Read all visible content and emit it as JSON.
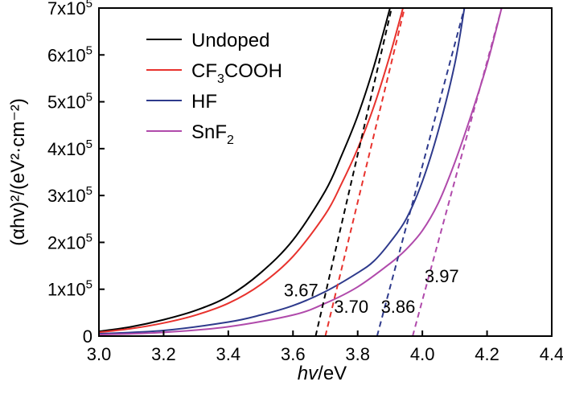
{
  "chart_data": {
    "type": "line",
    "title": "",
    "xlabel_italic": "hv",
    "xlabel_rest": "/eV",
    "ylabel_display": "(αhv)²/(eV²·cm⁻²)",
    "xlim": [
      3.0,
      4.4
    ],
    "ylim": [
      0,
      700000
    ],
    "x_ticks": [
      {
        "value": 3.0,
        "label": "3.0"
      },
      {
        "value": 3.2,
        "label": "3.2"
      },
      {
        "value": 3.4,
        "label": "3.4"
      },
      {
        "value": 3.6,
        "label": "3.6"
      },
      {
        "value": 3.8,
        "label": "3.8"
      },
      {
        "value": 4.0,
        "label": "4.0"
      },
      {
        "value": 4.2,
        "label": "4.2"
      },
      {
        "value": 4.4,
        "label": "4.4"
      }
    ],
    "y_ticks": [
      {
        "value": 0,
        "mant": "0",
        "exp": ""
      },
      {
        "value": 100000,
        "mant": "1x10",
        "exp": "5"
      },
      {
        "value": 200000,
        "mant": "2x10",
        "exp": "5"
      },
      {
        "value": 300000,
        "mant": "3x10",
        "exp": "5"
      },
      {
        "value": 400000,
        "mant": "4x10",
        "exp": "5"
      },
      {
        "value": 500000,
        "mant": "5x10",
        "exp": "5"
      },
      {
        "value": 600000,
        "mant": "6x10",
        "exp": "5"
      },
      {
        "value": 700000,
        "mant": "7x10",
        "exp": "5"
      }
    ],
    "series": [
      {
        "name": "Undoped",
        "legend_main": "Undoped",
        "legend_sub": "",
        "legend_tail": "",
        "color": "#000000",
        "x": [
          3.0,
          3.1,
          3.2,
          3.3,
          3.4,
          3.5,
          3.6,
          3.7,
          3.75,
          3.8,
          3.85,
          3.9
        ],
        "y": [
          10000,
          20000,
          35000,
          55000,
          85000,
          135000,
          205000,
          310000,
          385000,
          470000,
          575000,
          700000
        ]
      },
      {
        "name": "CF3COOH",
        "legend_main": "CF",
        "legend_sub": "3",
        "legend_tail": "COOH",
        "color": "#e8322d",
        "x": [
          3.0,
          3.1,
          3.2,
          3.3,
          3.4,
          3.5,
          3.6,
          3.7,
          3.75,
          3.8,
          3.85,
          3.9,
          3.94
        ],
        "y": [
          8000,
          16000,
          28000,
          45000,
          70000,
          110000,
          170000,
          260000,
          325000,
          400000,
          490000,
          600000,
          700000
        ]
      },
      {
        "name": "HF",
        "legend_main": "HF",
        "legend_sub": "",
        "legend_tail": "",
        "color": "#2e3a8c",
        "x": [
          3.0,
          3.2,
          3.4,
          3.5,
          3.6,
          3.7,
          3.8,
          3.85,
          3.9,
          3.95,
          4.0,
          4.05,
          4.1,
          4.13
        ],
        "y": [
          5000,
          12000,
          30000,
          45000,
          65000,
          95000,
          135000,
          160000,
          200000,
          250000,
          330000,
          440000,
          580000,
          700000
        ]
      },
      {
        "name": "SnF2",
        "legend_main": "SnF",
        "legend_sub": "2",
        "legend_tail": "",
        "color": "#b04aab",
        "x": [
          3.0,
          3.2,
          3.4,
          3.6,
          3.7,
          3.8,
          3.9,
          3.95,
          4.0,
          4.05,
          4.1,
          4.15,
          4.2,
          4.245
        ],
        "y": [
          3000,
          8000,
          20000,
          45000,
          70000,
          105000,
          155000,
          185000,
          225000,
          285000,
          370000,
          470000,
          580000,
          700000
        ]
      }
    ],
    "tangent_lines": [
      {
        "series": "Undoped",
        "color": "#000000",
        "x": [
          3.67,
          3.905
        ],
        "y": [
          0,
          700000
        ]
      },
      {
        "series": "CF3COOH",
        "color": "#e8322d",
        "x": [
          3.7,
          3.945
        ],
        "y": [
          0,
          700000
        ]
      },
      {
        "series": "HF",
        "color": "#2e3a8c",
        "x": [
          3.86,
          4.13
        ],
        "y": [
          0,
          700000
        ]
      },
      {
        "series": "SnF2",
        "color": "#b04aab",
        "x": [
          3.97,
          4.245
        ],
        "y": [
          0,
          700000
        ]
      }
    ],
    "annotations": [
      {
        "text": "3.67",
        "series": "Undoped",
        "x": 3.625,
        "y": 85000,
        "color": "#000000"
      },
      {
        "text": "3.70",
        "series": "CF3COOH",
        "x": 3.78,
        "y": 50000,
        "color": "#000000"
      },
      {
        "text": "3.86",
        "series": "HF",
        "x": 3.925,
        "y": 50000,
        "color": "#000000"
      },
      {
        "text": "3.97",
        "series": "SnF2",
        "x": 4.06,
        "y": 115000,
        "color": "#000000"
      }
    ],
    "legend": {
      "placement": "top-left"
    }
  }
}
